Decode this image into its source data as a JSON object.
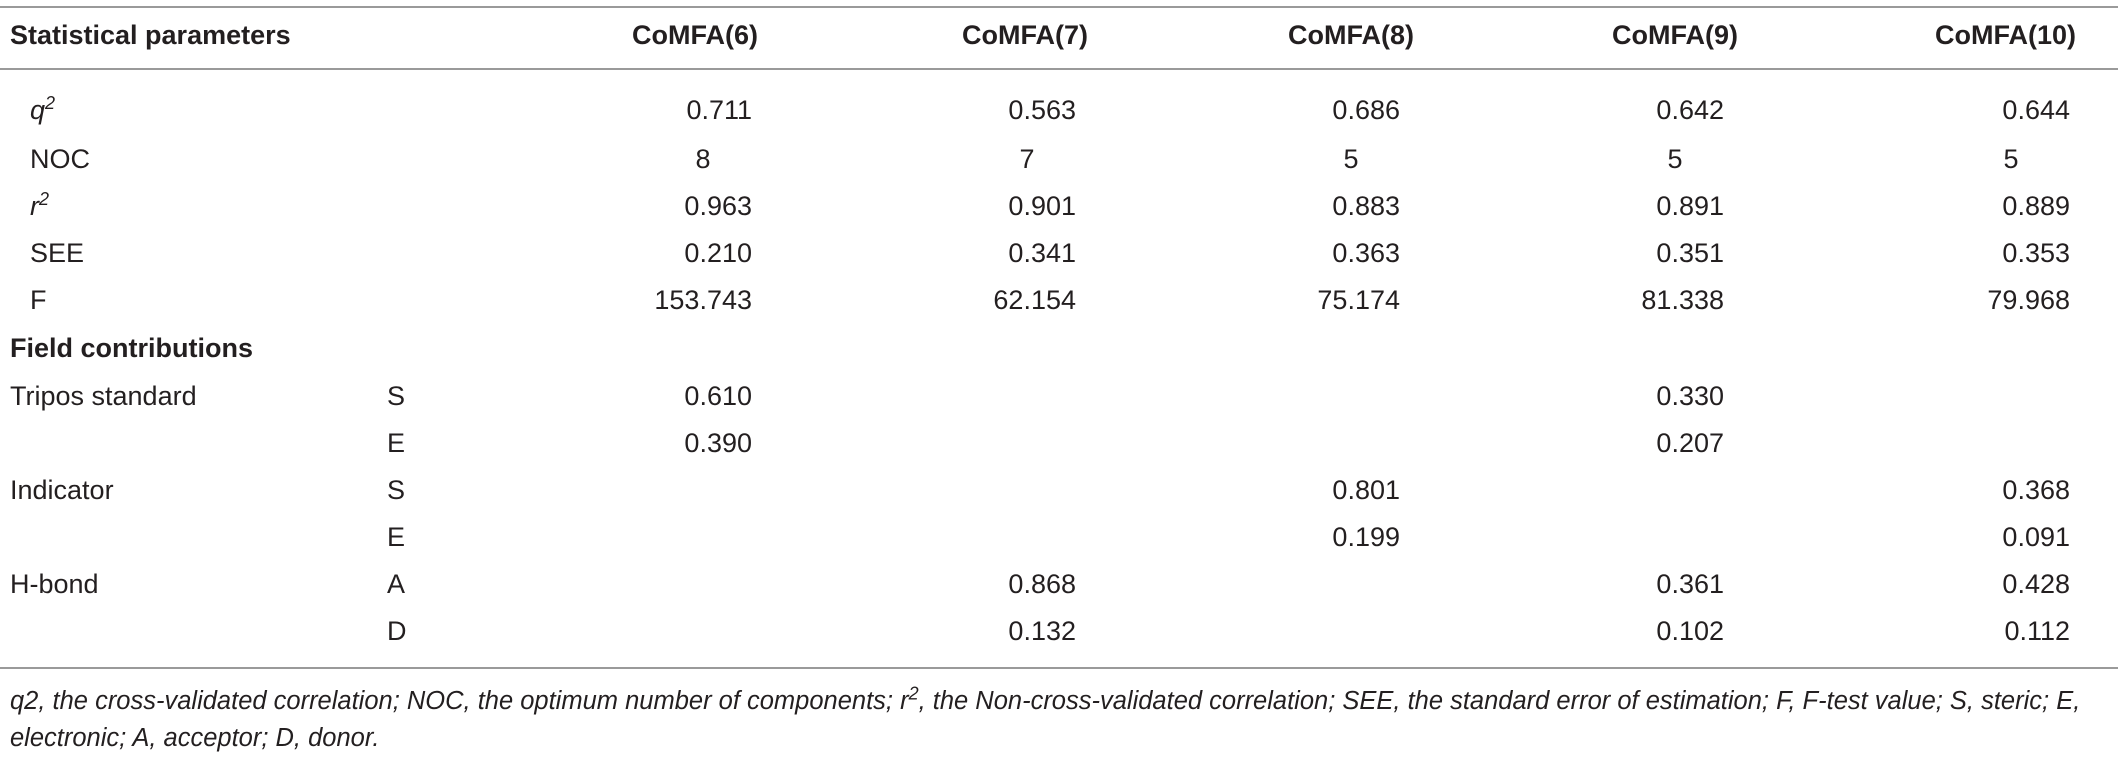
{
  "header": {
    "param_label": "Statistical parameters",
    "columns": [
      "CoMFA(6)",
      "CoMFA(7)",
      "CoMFA(8)",
      "CoMFA(9)",
      "CoMFA(10)"
    ]
  },
  "stats_rows": [
    {
      "name": "q",
      "sup": "2",
      "values": [
        "0.711",
        "0.563",
        "0.686",
        "0.642",
        "0.644"
      ]
    },
    {
      "name": "NOC",
      "sup": "",
      "values": [
        "8",
        "7",
        "5",
        "5",
        "5"
      ]
    },
    {
      "name": "r",
      "sup": "2",
      "values": [
        "0.963",
        "0.901",
        "0.883",
        "0.891",
        "0.889"
      ]
    },
    {
      "name": "SEE",
      "sup": "",
      "values": [
        "0.210",
        "0.341",
        "0.363",
        "0.351",
        "0.353"
      ]
    },
    {
      "name": "F",
      "sup": "",
      "values": [
        "153.743",
        "62.154",
        "75.174",
        "81.338",
        "79.968"
      ]
    }
  ],
  "field_section": {
    "title": "Field contributions",
    "rows": [
      {
        "group": "Tripos standard",
        "sub": "S",
        "values": [
          "0.610",
          "",
          "",
          "0.330",
          ""
        ]
      },
      {
        "group": "",
        "sub": "E",
        "values": [
          "0.390",
          "",
          "",
          "0.207",
          ""
        ]
      },
      {
        "group": "Indicator",
        "sub": "S",
        "values": [
          "",
          "",
          "0.801",
          "",
          "0.368"
        ]
      },
      {
        "group": "",
        "sub": "E",
        "values": [
          "",
          "",
          "0.199",
          "",
          "0.091"
        ]
      },
      {
        "group": "H-bond",
        "sub": "A",
        "values": [
          "",
          "0.868",
          "",
          "0.361",
          "0.428"
        ]
      },
      {
        "group": "",
        "sub": "D",
        "values": [
          "",
          "0.132",
          "",
          "0.102",
          "0.112"
        ]
      }
    ]
  },
  "footnote": {
    "part1": "q2, the cross-validated correlation; NOC, the optimum number of components; r",
    "sup": "2",
    "part2": ", the Non-cross-validated correlation; SEE, the standard error of estimation; F, F-test value; S, steric; E, electronic; A, acceptor; D, donor."
  }
}
